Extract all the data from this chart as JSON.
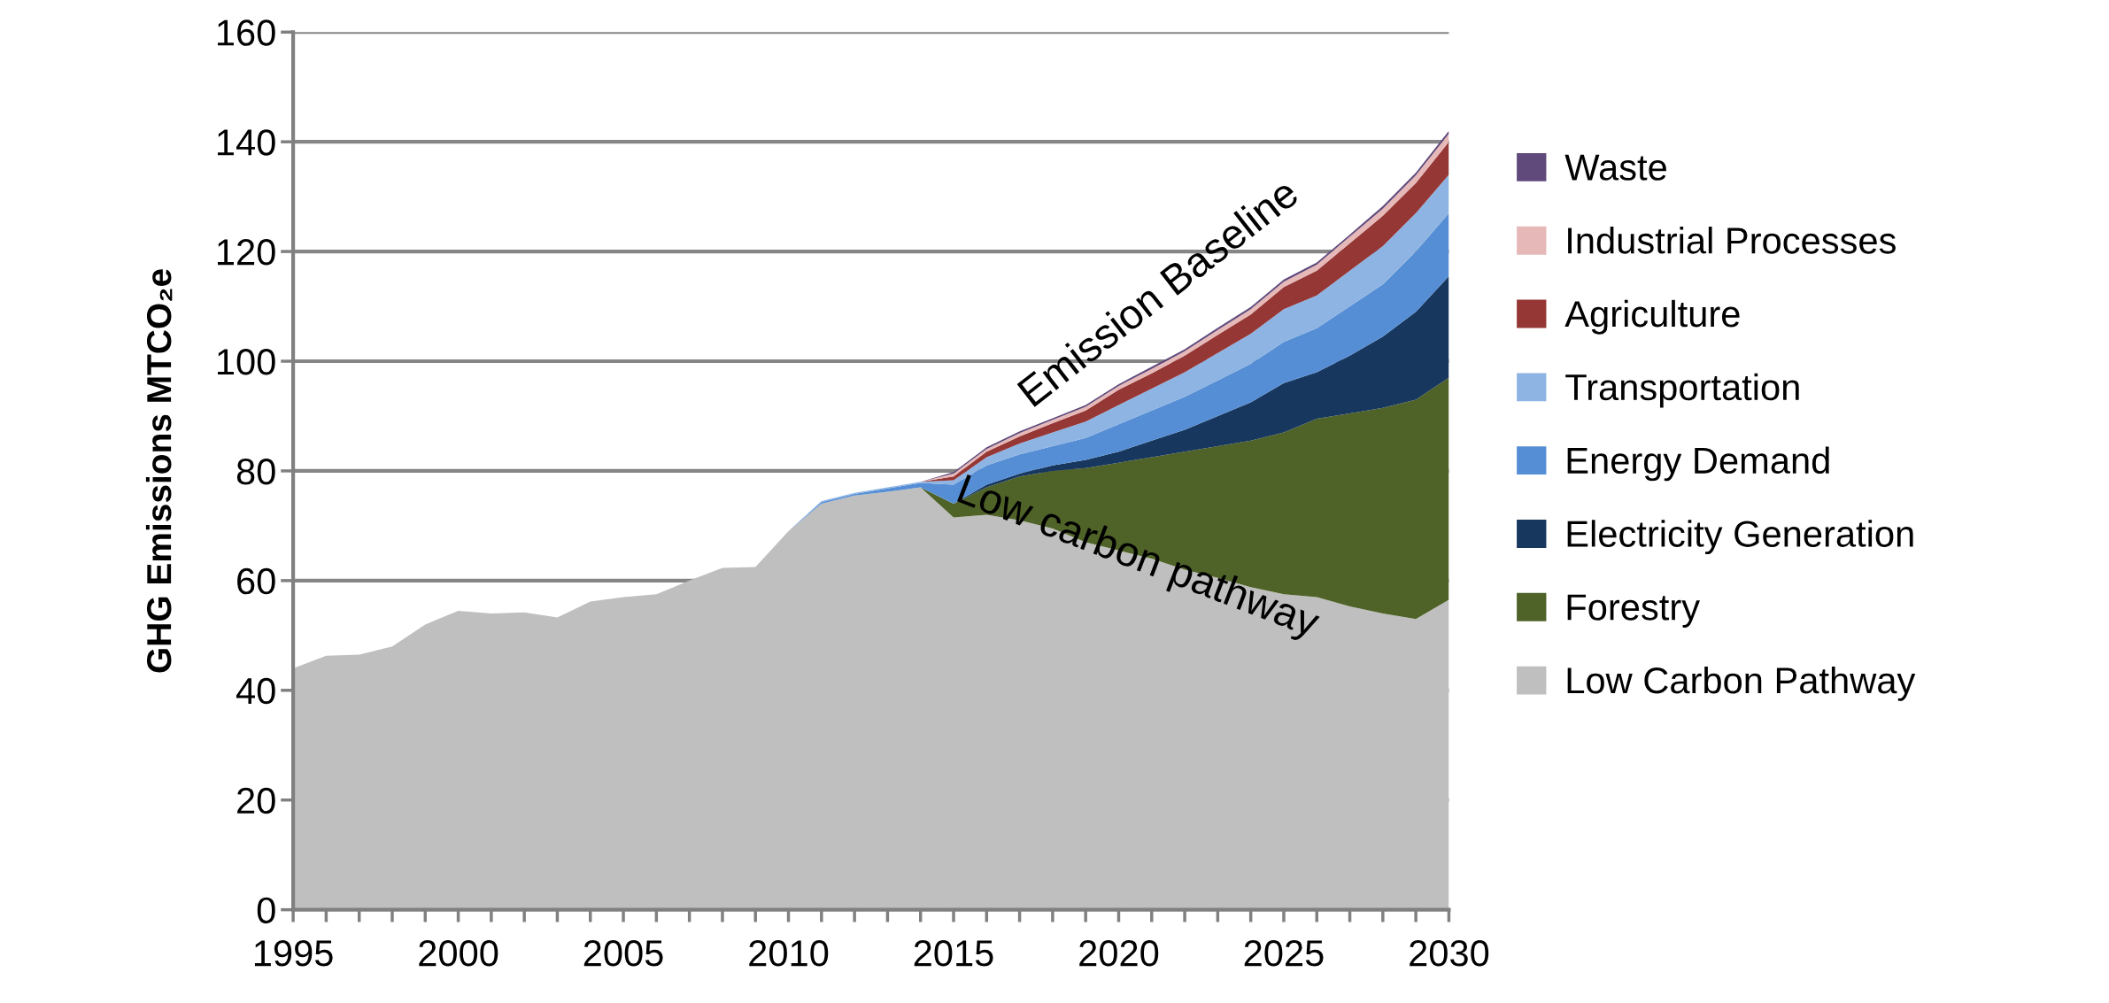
{
  "chart_data": {
    "type": "area",
    "stacked": true,
    "ylabel": "GHG Emissions MTCO₂e",
    "x": [
      1995,
      1996,
      1997,
      1998,
      1999,
      2000,
      2001,
      2002,
      2003,
      2004,
      2005,
      2006,
      2007,
      2008,
      2009,
      2010,
      2011,
      2012,
      2013,
      2014,
      2015,
      2016,
      2017,
      2018,
      2019,
      2020,
      2021,
      2022,
      2023,
      2024,
      2025,
      2026,
      2027,
      2028,
      2029,
      2030
    ],
    "series": [
      {
        "name": "Low Carbon Pathway",
        "color": "#bfbfbf",
        "values": [
          44,
          46.3,
          46.5,
          48,
          52,
          54.5,
          54,
          54.2,
          53.3,
          56.2,
          57,
          57.5,
          60,
          62.3,
          62.5,
          69,
          74,
          75.5,
          76.2,
          77,
          71.5,
          72,
          71,
          69.5,
          67,
          65.5,
          64,
          62,
          60.5,
          58.8,
          57.5,
          57,
          55.3,
          54,
          53,
          56.5
        ]
      },
      {
        "name": "Forestry",
        "color": "#4f6228",
        "values": [
          0,
          0,
          0,
          0,
          0,
          0,
          0,
          0,
          0,
          0,
          0,
          0,
          0,
          0,
          0,
          0,
          0,
          0,
          0,
          0,
          2.5,
          5,
          8,
          10.5,
          13.5,
          16,
          18.5,
          21.5,
          24,
          26.7,
          29.5,
          32.5,
          35.2,
          37.5,
          40,
          40.5
        ]
      },
      {
        "name": "Electricity Generation",
        "color": "#17375e",
        "values": [
          0,
          0,
          0,
          0,
          0,
          0,
          0,
          0,
          0,
          0,
          0,
          0,
          0,
          0,
          0,
          0,
          0,
          0,
          0,
          0,
          0,
          0.5,
          0.5,
          1,
          1.5,
          2,
          3,
          4,
          5.5,
          7,
          9,
          8.5,
          10.5,
          13,
          16,
          18.5
        ]
      },
      {
        "name": "Energy Demand",
        "color": "#558ed5",
        "values": [
          0,
          0,
          0,
          0,
          0,
          0,
          0,
          0,
          0,
          0,
          0,
          0,
          0,
          0,
          0,
          0,
          0.3,
          0.3,
          0.6,
          0.8,
          3.5,
          3.5,
          3.5,
          3.5,
          4,
          5,
          5.5,
          6,
          6.5,
          7,
          7.5,
          8,
          9,
          9.5,
          11,
          11.5
        ]
      },
      {
        "name": "Transportation",
        "color": "#8eb4e3",
        "values": [
          0,
          0,
          0,
          0,
          0,
          0,
          0,
          0,
          0,
          0,
          0,
          0,
          0,
          0,
          0,
          0,
          0.2,
          0.2,
          0.2,
          0.2,
          0.8,
          1.5,
          2,
          2.5,
          3,
          3.5,
          4,
          4.5,
          5,
          5.5,
          6,
          6,
          6.5,
          7,
          7,
          7
        ]
      },
      {
        "name": "Agriculture",
        "color": "#953735",
        "values": [
          0,
          0,
          0,
          0,
          0,
          0,
          0,
          0,
          0,
          0,
          0,
          0,
          0,
          0,
          0,
          0,
          0,
          0,
          0,
          0,
          0.7,
          1,
          1.3,
          1.7,
          2,
          2.8,
          2.8,
          3,
          3.3,
          3.5,
          4,
          4.5,
          5,
          5.5,
          5.5,
          6
        ]
      },
      {
        "name": "Industrial Processes",
        "color": "#e6b9b8",
        "values": [
          0,
          0,
          0,
          0,
          0,
          0,
          0,
          0,
          0,
          0,
          0,
          0,
          0,
          0,
          0,
          0,
          0,
          0,
          0,
          0,
          0.5,
          0.5,
          0.6,
          0.6,
          0.7,
          0.7,
          0.8,
          0.8,
          0.9,
          1,
          1,
          1.1,
          1.2,
          1.3,
          1.4,
          1.5
        ]
      },
      {
        "name": "Waste",
        "color": "#604a7b",
        "values": [
          0,
          0,
          0,
          0,
          0,
          0,
          0,
          0,
          0,
          0,
          0,
          0,
          0,
          0,
          0,
          0,
          0,
          0,
          0,
          0,
          0.3,
          0.3,
          0.3,
          0.3,
          0.3,
          0.3,
          0.4,
          0.4,
          0.4,
          0.4,
          0.4,
          0.4,
          0.4,
          0.5,
          0.5,
          0.5
        ]
      }
    ],
    "xlim": [
      1995,
      2030
    ],
    "xticks": [
      1995,
      {
        "value": 1996,
        "label": null
      },
      {
        "value": 1997,
        "label": null
      },
      {
        "value": 1998,
        "label": null
      },
      {
        "value": 1999,
        "label": null
      },
      2000,
      {
        "value": 2001,
        "label": null
      },
      {
        "value": 2002,
        "label": null
      },
      {
        "value": 2003,
        "label": null
      },
      {
        "value": 2004,
        "label": null
      },
      2005,
      {
        "value": 2006,
        "label": null
      },
      {
        "value": 2007,
        "label": null
      },
      {
        "value": 2008,
        "label": null
      },
      {
        "value": 2009,
        "label": null
      },
      2010,
      {
        "value": 2011,
        "label": null
      },
      {
        "value": 2012,
        "label": null
      },
      {
        "value": 2013,
        "label": null
      },
      {
        "value": 2014,
        "label": null
      },
      2015,
      {
        "value": 2016,
        "label": null
      },
      {
        "value": 2017,
        "label": null
      },
      {
        "value": 2018,
        "label": null
      },
      {
        "value": 2019,
        "label": null
      },
      2020,
      {
        "value": 2021,
        "label": null
      },
      {
        "value": 2022,
        "label": null
      },
      {
        "value": 2023,
        "label": null
      },
      {
        "value": 2024,
        "label": null
      },
      2025,
      {
        "value": 2026,
        "label": null
      },
      {
        "value": 2027,
        "label": null
      },
      {
        "value": 2028,
        "label": null
      },
      {
        "value": 2029,
        "label": null
      },
      2030
    ],
    "ylim": [
      0,
      160
    ],
    "yticks": [
      0,
      20,
      40,
      60,
      80,
      100,
      120,
      140,
      160
    ],
    "grid": "y",
    "legend": "right",
    "annotations": [
      "Emission Baseline",
      "Low carbon pathway"
    ]
  }
}
